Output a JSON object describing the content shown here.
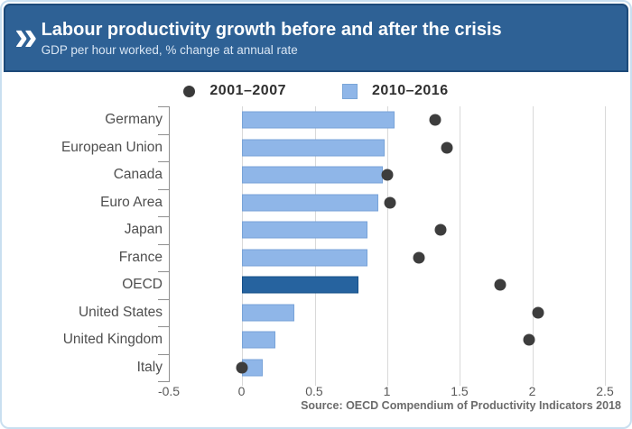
{
  "header": {
    "title": "Labour productivity growth before and after the crisis",
    "subtitle": "GDP per hour worked, % change at annual rate"
  },
  "legend": [
    {
      "label": "2001–2007",
      "marker": "dot"
    },
    {
      "label": "2010–2016",
      "marker": "square"
    }
  ],
  "source": "Source: OECD Compendium of Productivity Indicators 2018",
  "colors": {
    "header_bg": "#2e6195",
    "header_border": "#1d4a79",
    "bar_fill": "#8fb6e8",
    "bar_border": "#78a3d8",
    "highlight_bar_fill": "#26639f",
    "dot": "#3d3d3d",
    "gridline": "#d9d9d9",
    "card_border": "#c9dff0"
  },
  "chart_data": {
    "type": "bar",
    "orientation": "horizontal",
    "title": "Labour productivity growth before and after the crisis",
    "xlabel": "",
    "ylabel": "",
    "categories": [
      "Germany",
      "European Union",
      "Canada",
      "Euro Area",
      "Japan",
      "France",
      "OECD",
      "United States",
      "United Kingdom",
      "Italy"
    ],
    "series": [
      {
        "name": "2001–2007",
        "style": "scatter",
        "values": [
          1.33,
          1.41,
          1.0,
          1.02,
          1.37,
          1.22,
          1.78,
          2.04,
          1.98,
          0.0
        ]
      },
      {
        "name": "2010–2016",
        "style": "bar",
        "values": [
          1.05,
          0.98,
          0.97,
          0.94,
          0.86,
          0.86,
          0.8,
          0.36,
          0.23,
          0.14
        ]
      }
    ],
    "highlight_category": "OECD",
    "xlim": [
      -0.5,
      2.5
    ],
    "xticks": [
      -0.5,
      0,
      0.5,
      1,
      1.5,
      2,
      2.5
    ],
    "xtick_labels": [
      "-0.5",
      "0",
      "0.5",
      "1",
      "1.5",
      "2",
      "2.5"
    ],
    "grid": true,
    "legend_position": "top"
  }
}
